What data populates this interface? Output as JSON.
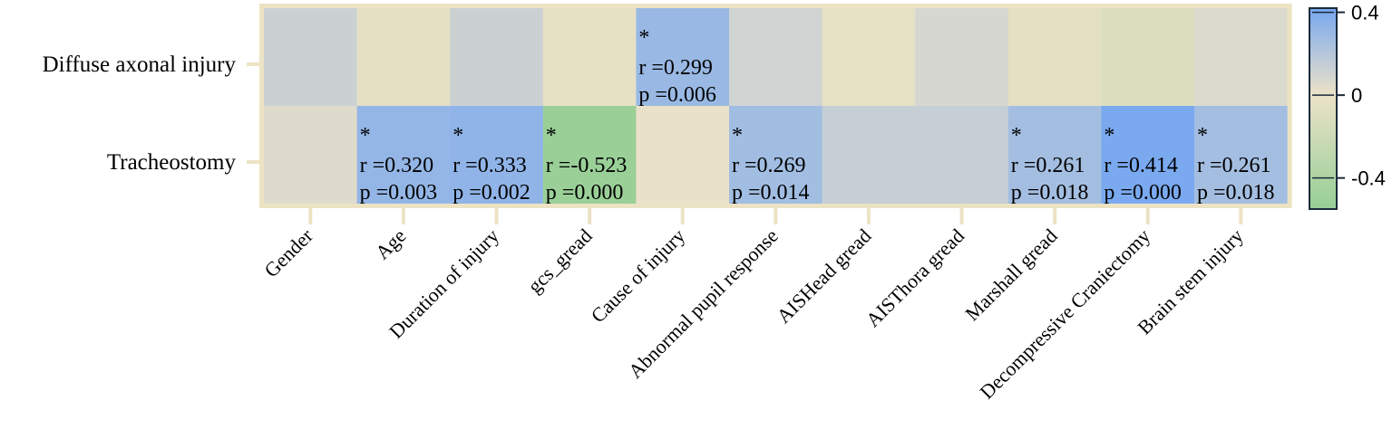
{
  "chart_data": {
    "type": "heatmap",
    "rows": [
      "Diffuse axonal injury",
      "Tracheostomy"
    ],
    "columns": [
      "Gender",
      "Age",
      "Duration of injury",
      "gcs_gread",
      "Cause of injury",
      "Abnormal pupil response",
      "AISHead gread",
      "AISThora gread",
      "Marshall gread",
      "Decompressive Craniectomy",
      "Brain stem injury"
    ],
    "values": [
      [
        0.12,
        -0.05,
        0.12,
        -0.04,
        0.299,
        0.1,
        -0.03,
        0.08,
        -0.05,
        -0.1,
        0.06
      ],
      [
        0.05,
        0.32,
        0.333,
        -0.523,
        0.01,
        0.269,
        0.14,
        0.14,
        0.261,
        0.414,
        0.261
      ]
    ],
    "annotations": [
      {
        "row": 0,
        "col": 4,
        "star": "*",
        "r": "r =0.299",
        "p": "p =0.006"
      },
      {
        "row": 1,
        "col": 1,
        "star": "*",
        "r": "r =0.320",
        "p": "p =0.003"
      },
      {
        "row": 1,
        "col": 2,
        "star": "*",
        "r": "r =0.333",
        "p": "p =0.002"
      },
      {
        "row": 1,
        "col": 3,
        "star": "*",
        "r": "r =-0.523",
        "p": "p =0.000"
      },
      {
        "row": 1,
        "col": 5,
        "star": "*",
        "r": "r =0.269",
        "p": "p =0.014"
      },
      {
        "row": 1,
        "col": 8,
        "star": "*",
        "r": "r =0.261",
        "p": "p =0.018"
      },
      {
        "row": 1,
        "col": 9,
        "star": "*",
        "r": "r =0.414",
        "p": "p =0.000"
      },
      {
        "row": 1,
        "col": 10,
        "star": "*",
        "r": "r =0.261",
        "p": "p =0.018"
      }
    ],
    "colorbar": {
      "range": [
        -0.55,
        0.42
      ],
      "ticks": [
        0.4,
        0,
        -0.4
      ],
      "tick_labels": [
        "0.4",
        "0",
        "-0.4"
      ],
      "colors": {
        "negative": "#96cf96",
        "zero": "#ece2c8",
        "positive": "#78a8f0"
      }
    },
    "frame_color": "#ece3c4"
  }
}
